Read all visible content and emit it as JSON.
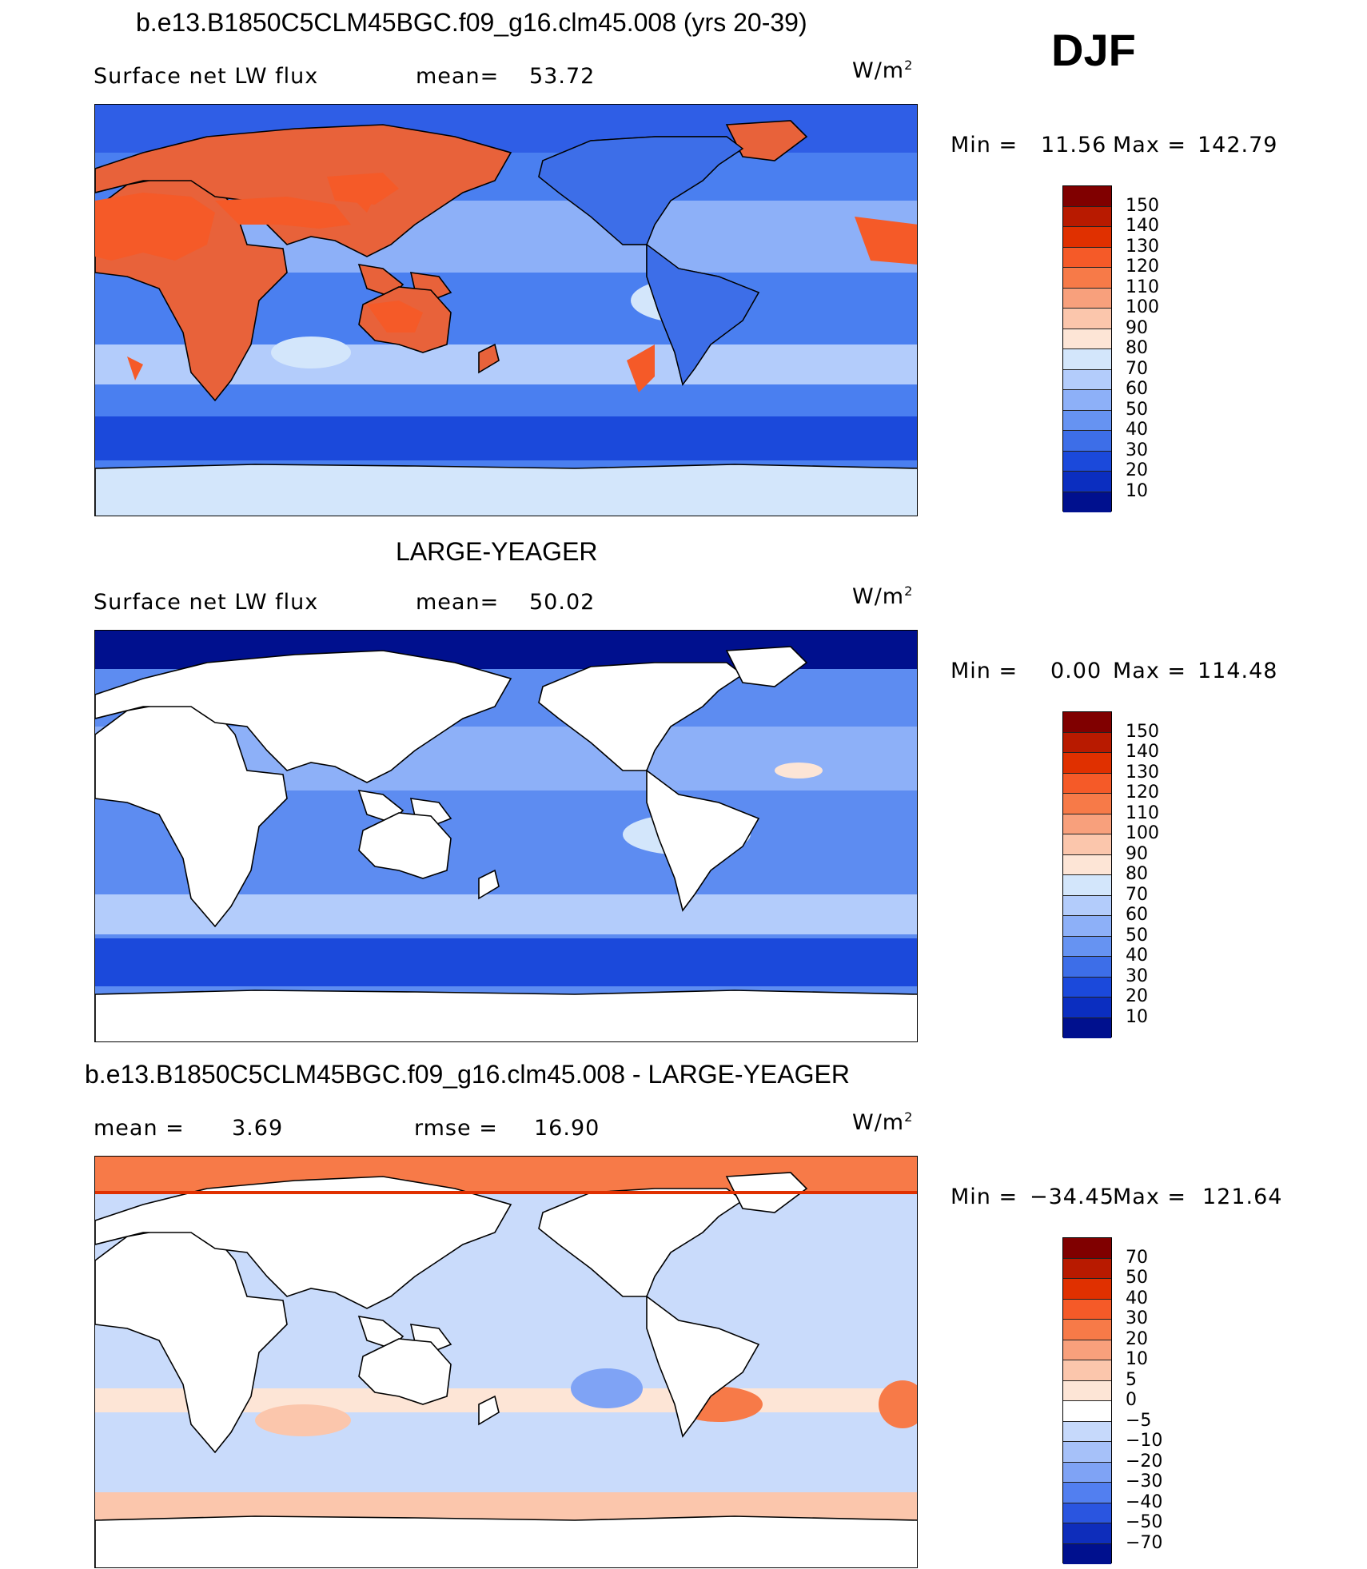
{
  "figure": {
    "season": "DJF",
    "top_title": "b.e13.B1850C5CLM45BGC.f09_g16.clm45.008 (yrs 20-39)",
    "mid_title": "LARGE-YEAGER",
    "bottom_title": "b.e13.B1850C5CLM45BGC.f09_g16.clm45.008 - LARGE-YEAGER"
  },
  "panels": [
    {
      "variable": "Surface net LW flux",
      "stat_label": "mean=",
      "stat_value": "53.72",
      "units": "W/m",
      "units_sup": "2",
      "min_label": "Min =",
      "min_value": "11.56",
      "max_label": "Max =",
      "max_value": "142.79",
      "ocean_color": "#4a7ff0",
      "land_color": "#e8623a",
      "colorbar": {
        "labels": [
          "150",
          "140",
          "130",
          "120",
          "110",
          "100",
          "90",
          "80",
          "70",
          "60",
          "50",
          "40",
          "30",
          "20",
          "10"
        ],
        "colors": [
          "#800000",
          "#b81a00",
          "#e03000",
          "#f55a28",
          "#f77a48",
          "#f8a07c",
          "#fbc6ac",
          "#fde5d6",
          "#d3e6fb",
          "#b3ccfb",
          "#8db0f8",
          "#6693f2",
          "#3d6ee8",
          "#1b49db",
          "#0b2ec0",
          "#00108e"
        ]
      }
    },
    {
      "variable": "Surface net LW flux",
      "stat_label": "mean=",
      "stat_value": "50.02",
      "units": "W/m",
      "units_sup": "2",
      "min_label": "Min =",
      "min_value": "0.00",
      "max_label": "Max =",
      "max_value": "114.48",
      "ocean_color": "#5d8cf1",
      "land_color": "#ffffff",
      "colorbar": {
        "labels": [
          "150",
          "140",
          "130",
          "120",
          "110",
          "100",
          "90",
          "80",
          "70",
          "60",
          "50",
          "40",
          "30",
          "20",
          "10"
        ],
        "colors": [
          "#800000",
          "#b81a00",
          "#e03000",
          "#f55a28",
          "#f77a48",
          "#f8a07c",
          "#fbc6ac",
          "#fde5d6",
          "#d3e6fb",
          "#b3ccfb",
          "#8db0f8",
          "#6693f2",
          "#3d6ee8",
          "#1b49db",
          "#0b2ec0",
          "#00108e"
        ]
      }
    },
    {
      "variable": "mean =",
      "stat_label": "rmse =",
      "mean_value": "3.69",
      "stat_value": "16.90",
      "units": "W/m",
      "units_sup": "2",
      "min_label": "Min =",
      "min_value": "−34.45",
      "max_label": "Max =",
      "max_value": "121.64",
      "ocean_color": "#c9dbfb",
      "land_color": "#ffffff",
      "colorbar": {
        "labels": [
          "70",
          "50",
          "40",
          "30",
          "20",
          "10",
          "5",
          "0",
          "−5",
          "−10",
          "−20",
          "−30",
          "−40",
          "−50",
          "−70"
        ],
        "colors": [
          "#800000",
          "#b81a00",
          "#e03000",
          "#f55a28",
          "#f77a48",
          "#f8a07c",
          "#fbc6ac",
          "#fde5d6",
          "#ffffff",
          "#c6d9fb",
          "#a6c1f9",
          "#7fa3f5",
          "#527ff0",
          "#2a55e0",
          "#0e2dbb",
          "#00108e"
        ]
      }
    }
  ]
}
